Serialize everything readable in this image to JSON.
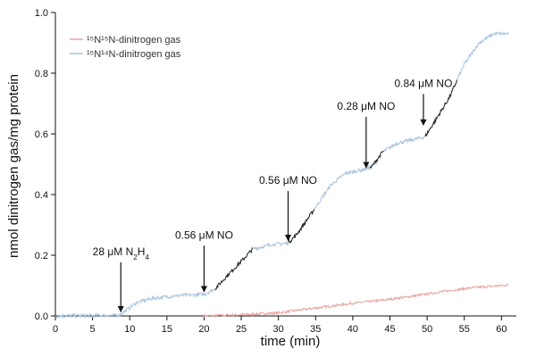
{
  "chart_data": {
    "type": "line",
    "title": "",
    "xlabel": "time (min)",
    "ylabel": "nmol dinitrogen gas/mg protein",
    "xlim": [
      0,
      62
    ],
    "ylim": [
      0,
      1.0
    ],
    "xticks": [
      "0",
      "5",
      "10",
      "15",
      "20",
      "25",
      "30",
      "35",
      "40",
      "45",
      "50",
      "55",
      "60"
    ],
    "yticks": [
      "0.0",
      "0.2",
      "0.4",
      "0.6",
      "0.8",
      "1.0"
    ],
    "legend_position": "top-left",
    "series": [
      {
        "name": "¹⁵N¹⁵N-dinitrogen gas",
        "color": "#e8a3a3",
        "points": [
          [
            20,
            0
          ],
          [
            25,
            0.004
          ],
          [
            30,
            0.01
          ],
          [
            33,
            0.02
          ],
          [
            37,
            0.032
          ],
          [
            40,
            0.042
          ],
          [
            44,
            0.052
          ],
          [
            48,
            0.065
          ],
          [
            52,
            0.08
          ],
          [
            56,
            0.093
          ],
          [
            60,
            0.1
          ],
          [
            61,
            0.102
          ]
        ]
      },
      {
        "name": "¹⁵N¹⁴N-dinitrogen gas",
        "color": "#a9c4de",
        "points": [
          [
            0,
            0
          ],
          [
            8.5,
            0.002
          ],
          [
            9.5,
            0.018
          ],
          [
            11,
            0.045
          ],
          [
            13,
            0.058
          ],
          [
            16,
            0.066
          ],
          [
            20,
            0.071
          ],
          [
            21.5,
            0.09
          ],
          [
            23,
            0.13
          ],
          [
            25,
            0.18
          ],
          [
            26.5,
            0.22
          ],
          [
            29,
            0.235
          ],
          [
            31.3,
            0.24
          ],
          [
            32.5,
            0.27
          ],
          [
            34.5,
            0.34
          ],
          [
            37,
            0.43
          ],
          [
            39,
            0.47
          ],
          [
            41,
            0.48
          ],
          [
            42.5,
            0.49
          ],
          [
            44,
            0.54
          ],
          [
            46,
            0.57
          ],
          [
            48,
            0.58
          ],
          [
            49.7,
            0.59
          ],
          [
            51,
            0.64
          ],
          [
            53,
            0.72
          ],
          [
            55,
            0.83
          ],
          [
            57,
            0.9
          ],
          [
            59,
            0.93
          ],
          [
            61,
            0.93
          ]
        ]
      }
    ],
    "highlight_color": "#222222",
    "highlight_segments": [
      [
        21.5,
        26.5
      ],
      [
        31.3,
        34.8
      ],
      [
        42.3,
        44.2
      ],
      [
        49.7,
        54.0
      ]
    ],
    "annotations": [
      {
        "label_parts": [
          "28 μM N",
          "2",
          "H",
          "4"
        ],
        "x": 8.8,
        "y": 0.005,
        "label_y": 0.2
      },
      {
        "label_parts": [
          "0.56 μM NO"
        ],
        "x": 20.0,
        "y": 0.071,
        "label_y": 0.255
      },
      {
        "label_parts": [
          "0.56 μM NO"
        ],
        "x": 31.3,
        "y": 0.24,
        "label_y": 0.435
      },
      {
        "label_parts": [
          "0.28 μM NO"
        ],
        "x": 41.8,
        "y": 0.48,
        "label_y": 0.68
      },
      {
        "label_parts": [
          "0.84 μM NO"
        ],
        "x": 49.5,
        "y": 0.62,
        "label_y": 0.755
      }
    ]
  }
}
